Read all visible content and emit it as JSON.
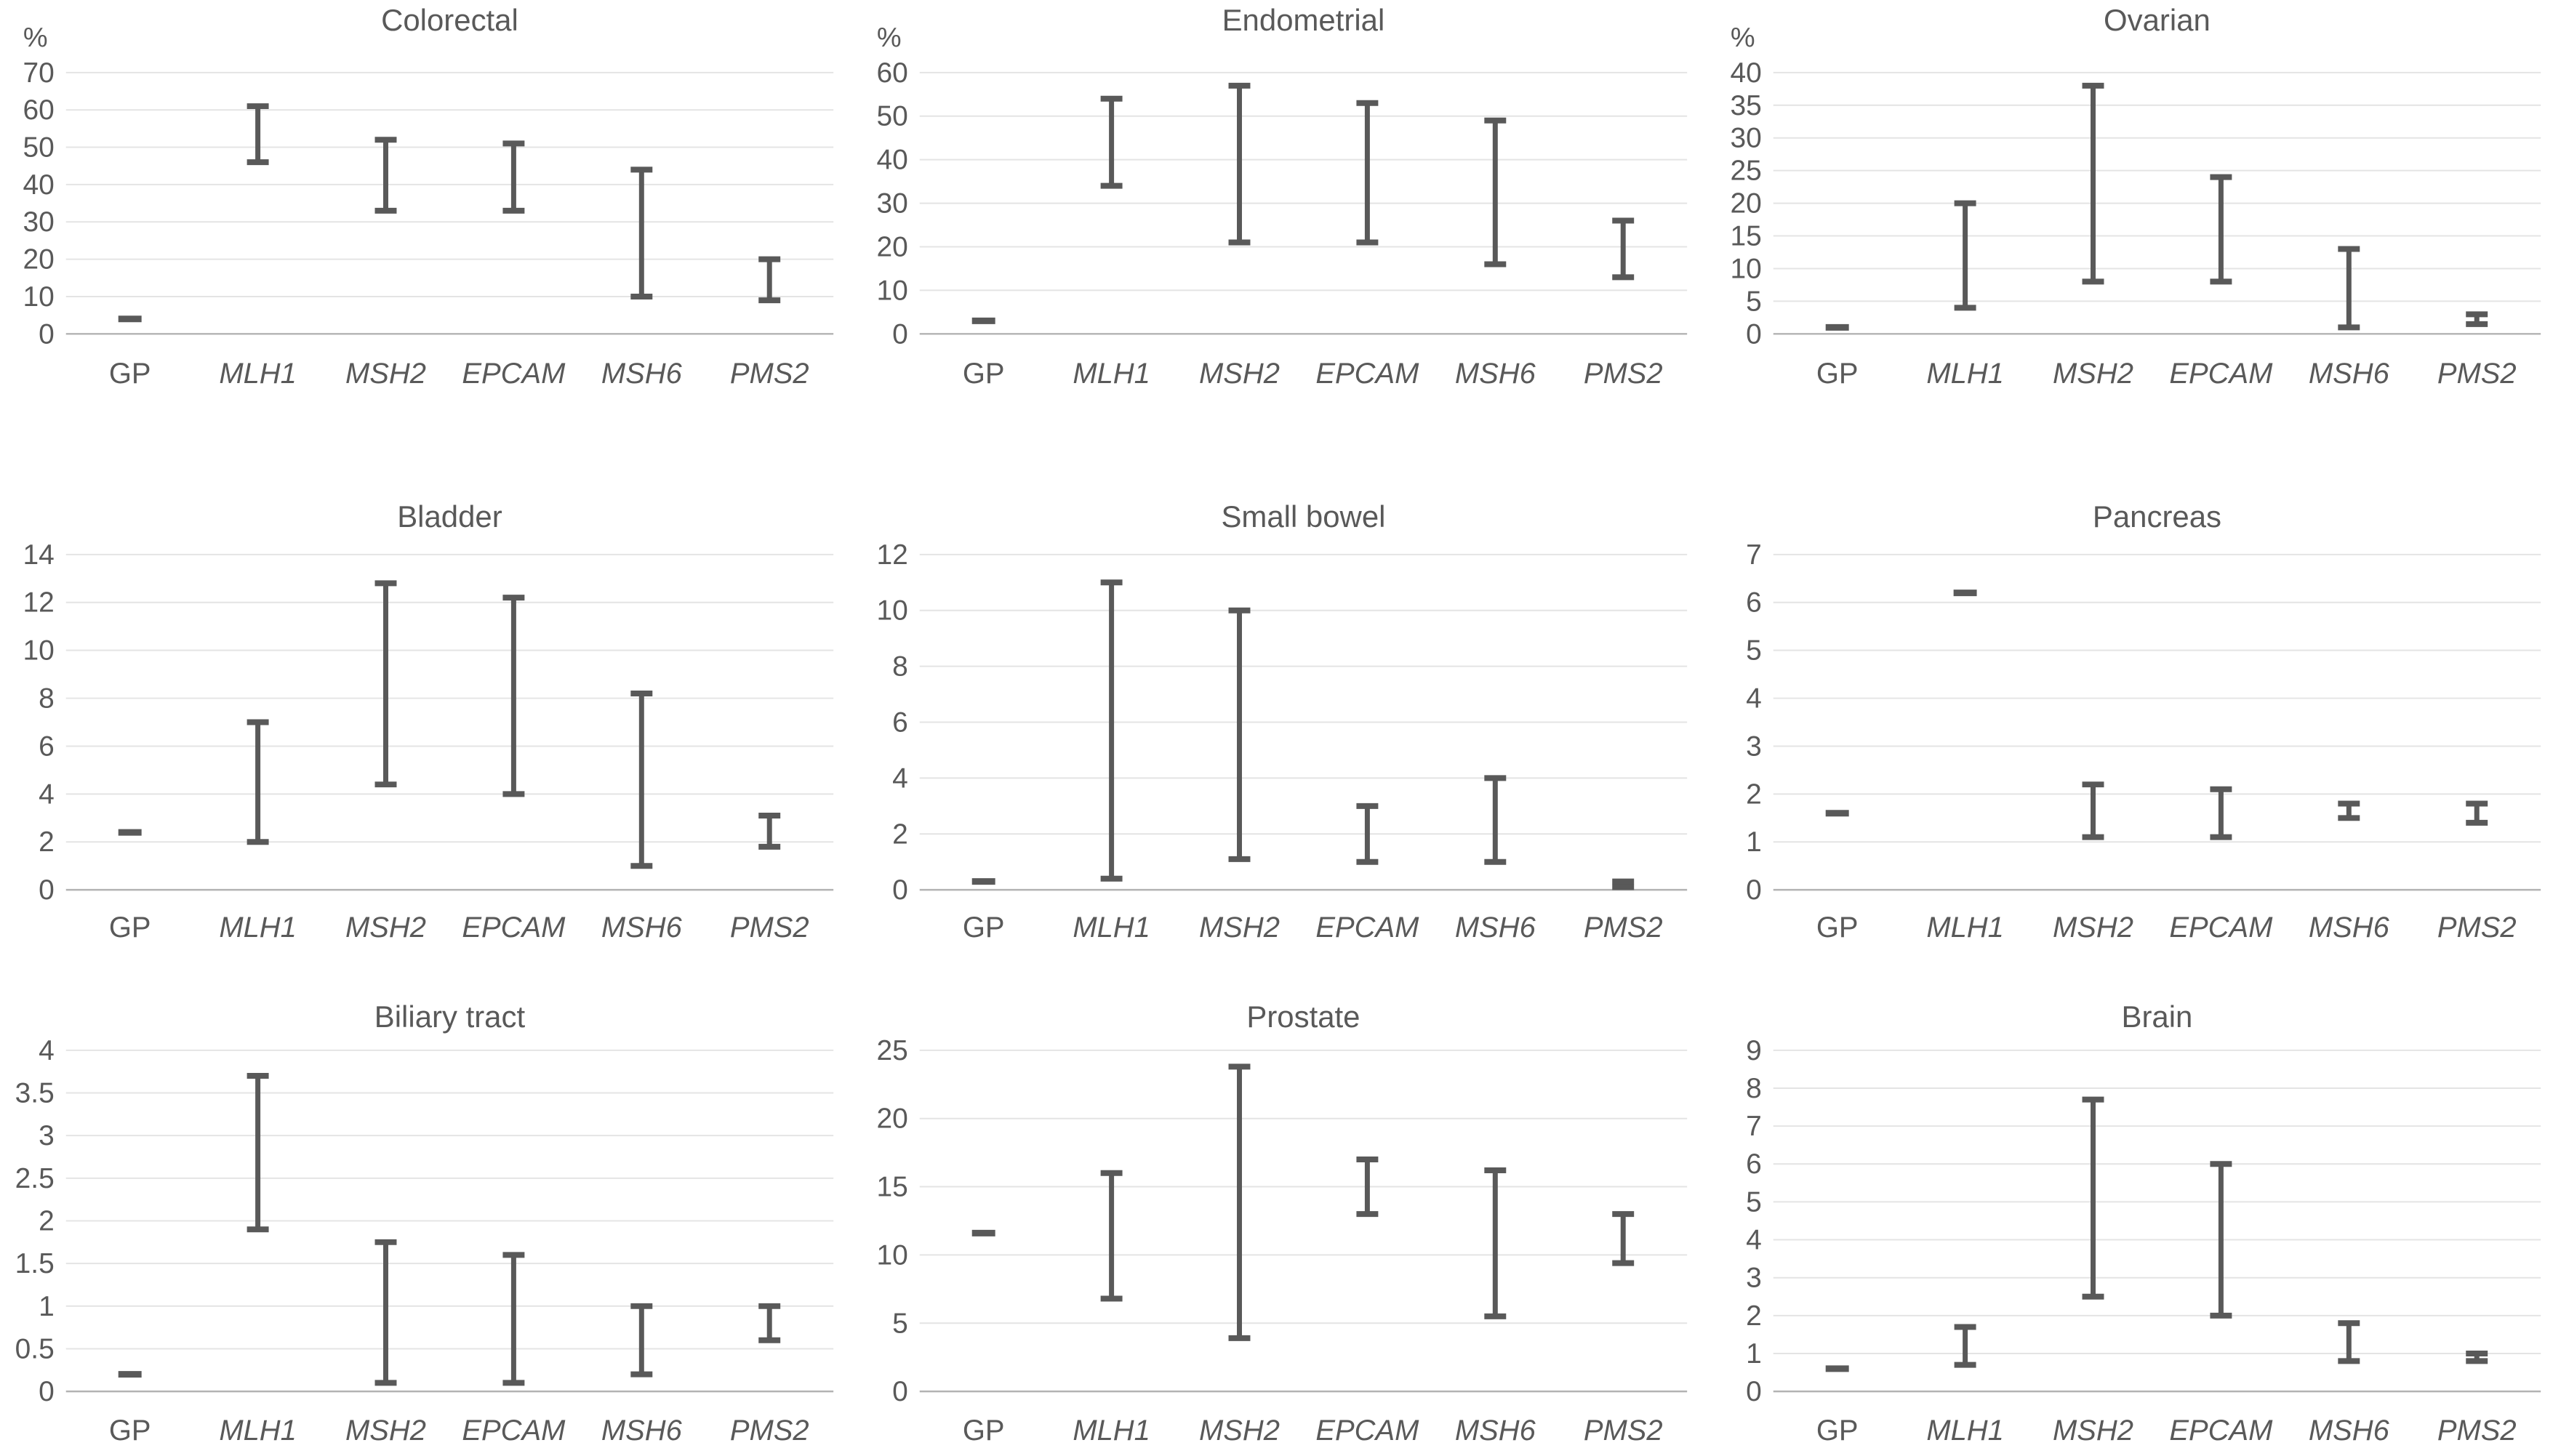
{
  "page": {
    "background": "#ffffff"
  },
  "styles": {
    "bar_color": "#595959",
    "grid_color": "#e4e4e4",
    "axis_color": "#b3b3b3",
    "text_color": "#595959"
  },
  "categories": [
    "GP",
    "MLH1",
    "MSH2",
    "EPCAM",
    "MSH6",
    "PMS2"
  ],
  "chart_data": [
    {
      "type": "range-bar",
      "title": "Colorectal",
      "ylabel": "%",
      "ylim": [
        0,
        70
      ],
      "ytick_step": 10,
      "grid": true,
      "series": [
        {
          "gene": "GP",
          "min": 4,
          "max": 4,
          "italic": false
        },
        {
          "gene": "MLH1",
          "min": 46,
          "max": 61,
          "italic": true
        },
        {
          "gene": "MSH2",
          "min": 33,
          "max": 52,
          "italic": true
        },
        {
          "gene": "EPCAM",
          "min": 33,
          "max": 51,
          "italic": true
        },
        {
          "gene": "MSH6",
          "min": 10,
          "max": 44,
          "italic": true
        },
        {
          "gene": "PMS2",
          "min": 9,
          "max": 20,
          "italic": true
        }
      ]
    },
    {
      "type": "range-bar",
      "title": "Endometrial",
      "ylabel": "%",
      "ylim": [
        0,
        60
      ],
      "ytick_step": 10,
      "grid": true,
      "series": [
        {
          "gene": "GP",
          "min": 3,
          "max": 3,
          "italic": false
        },
        {
          "gene": "MLH1",
          "min": 34,
          "max": 54,
          "italic": true
        },
        {
          "gene": "MSH2",
          "min": 21,
          "max": 57,
          "italic": true
        },
        {
          "gene": "EPCAM",
          "min": 21,
          "max": 53,
          "italic": true
        },
        {
          "gene": "MSH6",
          "min": 16,
          "max": 49,
          "italic": true
        },
        {
          "gene": "PMS2",
          "min": 13,
          "max": 26,
          "italic": true
        }
      ]
    },
    {
      "type": "range-bar",
      "title": "Ovarian",
      "ylabel": "%",
      "ylim": [
        0,
        40
      ],
      "ytick_step": 5,
      "grid": true,
      "series": [
        {
          "gene": "GP",
          "min": 1,
          "max": 1,
          "italic": false
        },
        {
          "gene": "MLH1",
          "min": 4,
          "max": 20,
          "italic": true
        },
        {
          "gene": "MSH2",
          "min": 8,
          "max": 38,
          "italic": true
        },
        {
          "gene": "EPCAM",
          "min": 8,
          "max": 24,
          "italic": true
        },
        {
          "gene": "MSH6",
          "min": 1,
          "max": 13,
          "italic": true
        },
        {
          "gene": "PMS2",
          "min": 1.5,
          "max": 3,
          "italic": true
        }
      ]
    },
    {
      "type": "range-bar",
      "title": "Bladder",
      "ylabel": "",
      "ylim": [
        0,
        14
      ],
      "ytick_step": 2,
      "grid": true,
      "series": [
        {
          "gene": "GP",
          "min": 2.4,
          "max": 2.4,
          "italic": false
        },
        {
          "gene": "MLH1",
          "min": 2,
          "max": 7,
          "italic": true
        },
        {
          "gene": "MSH2",
          "min": 4.4,
          "max": 12.8,
          "italic": true
        },
        {
          "gene": "EPCAM",
          "min": 4,
          "max": 12.2,
          "italic": true
        },
        {
          "gene": "MSH6",
          "min": 1,
          "max": 8.2,
          "italic": true
        },
        {
          "gene": "PMS2",
          "min": 1.8,
          "max": 3.1,
          "italic": true
        }
      ]
    },
    {
      "type": "range-bar",
      "title": "Small bowel",
      "ylabel": "",
      "ylim": [
        0,
        12
      ],
      "ytick_step": 2,
      "grid": true,
      "series": [
        {
          "gene": "GP",
          "min": 0.3,
          "max": 0.3,
          "italic": false
        },
        {
          "gene": "MLH1",
          "min": 0.4,
          "max": 11,
          "italic": true
        },
        {
          "gene": "MSH2",
          "min": 1.1,
          "max": 10,
          "italic": true
        },
        {
          "gene": "EPCAM",
          "min": 1,
          "max": 3,
          "italic": true
        },
        {
          "gene": "MSH6",
          "min": 1,
          "max": 4,
          "italic": true
        },
        {
          "gene": "PMS2",
          "min": 0.1,
          "max": 0.3,
          "italic": true
        }
      ]
    },
    {
      "type": "range-bar",
      "title": "Pancreas",
      "ylabel": "",
      "ylim": [
        0,
        7
      ],
      "ytick_step": 1,
      "grid": true,
      "series": [
        {
          "gene": "GP",
          "min": 1.6,
          "max": 1.6,
          "italic": false
        },
        {
          "gene": "MLH1",
          "min": 6.2,
          "max": 6.2,
          "italic": true
        },
        {
          "gene": "MSH2",
          "min": 1.1,
          "max": 2.2,
          "italic": true
        },
        {
          "gene": "EPCAM",
          "min": 1.1,
          "max": 2.1,
          "italic": true
        },
        {
          "gene": "MSH6",
          "min": 1.5,
          "max": 1.8,
          "italic": true
        },
        {
          "gene": "PMS2",
          "min": 1.4,
          "max": 1.8,
          "italic": true
        }
      ]
    },
    {
      "type": "range-bar",
      "title": "Biliary tract",
      "ylabel": "",
      "ylim": [
        0,
        4
      ],
      "ytick_step": 0.5,
      "grid": true,
      "series": [
        {
          "gene": "GP",
          "min": 0.2,
          "max": 0.2,
          "italic": false
        },
        {
          "gene": "MLH1",
          "min": 1.9,
          "max": 3.7,
          "italic": true
        },
        {
          "gene": "MSH2",
          "min": 0.1,
          "max": 1.75,
          "italic": true
        },
        {
          "gene": "EPCAM",
          "min": 0.1,
          "max": 1.6,
          "italic": true
        },
        {
          "gene": "MSH6",
          "min": 0.2,
          "max": 1,
          "italic": true
        },
        {
          "gene": "PMS2",
          "min": 0.6,
          "max": 1,
          "italic": true
        }
      ]
    },
    {
      "type": "range-bar",
      "title": "Prostate",
      "ylabel": "",
      "ylim": [
        0,
        25
      ],
      "ytick_step": 5,
      "grid": true,
      "series": [
        {
          "gene": "GP",
          "min": 11.6,
          "max": 11.6,
          "italic": false
        },
        {
          "gene": "MLH1",
          "min": 6.8,
          "max": 16,
          "italic": true
        },
        {
          "gene": "MSH2",
          "min": 3.9,
          "max": 23.8,
          "italic": true
        },
        {
          "gene": "EPCAM",
          "min": 13,
          "max": 17,
          "italic": true
        },
        {
          "gene": "MSH6",
          "min": 5.5,
          "max": 16.2,
          "italic": true
        },
        {
          "gene": "PMS2",
          "min": 9.4,
          "max": 13,
          "italic": true
        }
      ]
    },
    {
      "type": "range-bar",
      "title": "Brain",
      "ylabel": "",
      "ylim": [
        0,
        9
      ],
      "ytick_step": 1,
      "grid": true,
      "series": [
        {
          "gene": "GP",
          "min": 0.6,
          "max": 0.6,
          "italic": false
        },
        {
          "gene": "MLH1",
          "min": 0.7,
          "max": 1.7,
          "italic": true
        },
        {
          "gene": "MSH2",
          "min": 2.5,
          "max": 7.7,
          "italic": true
        },
        {
          "gene": "EPCAM",
          "min": 2,
          "max": 6,
          "italic": true
        },
        {
          "gene": "MSH6",
          "min": 0.8,
          "max": 1.8,
          "italic": true
        },
        {
          "gene": "PMS2",
          "min": 0.8,
          "max": 1,
          "italic": true
        }
      ]
    }
  ]
}
